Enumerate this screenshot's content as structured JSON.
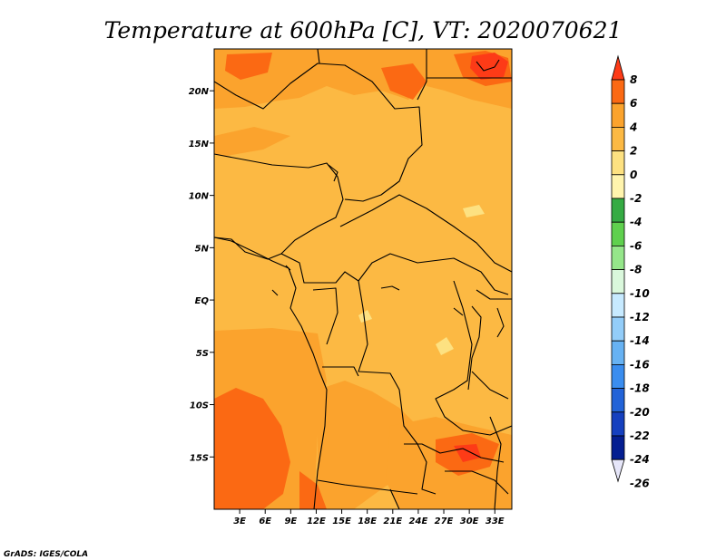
{
  "title": "Temperature at 600hPa [C], VT: 2020070621",
  "credit": "GrADS: IGES/COLA",
  "map": {
    "lon_range": [
      0,
      35
    ],
    "lat_range": [
      -20,
      24
    ],
    "lon_ticks": [
      "3E",
      "6E",
      "9E",
      "12E",
      "15E",
      "18E",
      "21E",
      "24E",
      "27E",
      "30E",
      "33E"
    ],
    "lat_ticks": [
      "20N",
      "15N",
      "10N",
      "5N",
      "EQ",
      "5S",
      "10S",
      "15S"
    ],
    "lon_tick_values": [
      3,
      6,
      9,
      12,
      15,
      18,
      21,
      24,
      27,
      30,
      33
    ],
    "lat_tick_values": [
      20,
      15,
      10,
      5,
      0,
      -5,
      -10,
      -15
    ],
    "background_color": "#fcb943"
  },
  "colorbar": {
    "labels": [
      "8",
      "6",
      "4",
      "2",
      "0",
      "-2",
      "-4",
      "-6",
      "-8",
      "-10",
      "-12",
      "-14",
      "-16",
      "-18",
      "-20",
      "-22",
      "-24",
      "-26"
    ],
    "colors": [
      "#fd3b17",
      "#fb6913",
      "#fba32d",
      "#fcb943",
      "#fde181",
      "#fff4ad",
      "#35ab43",
      "#5fd04e",
      "#95e68a",
      "#daf8dc",
      "#c7eaff",
      "#93cdf9",
      "#67b2f3",
      "#3a8def",
      "#2263d8",
      "#1540bf",
      "#041e91",
      "#e6e6f9"
    ]
  }
}
